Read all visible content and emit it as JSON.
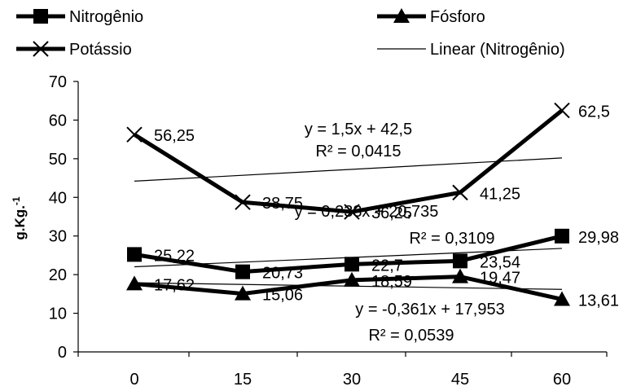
{
  "chart_data": {
    "type": "line",
    "title": "",
    "xlabel": "",
    "ylabel": "g.Kg.",
    "ylabel_sup": "-1",
    "x": [
      0,
      15,
      30,
      45,
      60
    ],
    "x_tick_labels": [
      "0",
      "15",
      "30",
      "45",
      "60"
    ],
    "ylim": [
      0,
      70
    ],
    "y_ticks": [
      0,
      10,
      20,
      30,
      40,
      50,
      60,
      70
    ],
    "grid": false,
    "legend_placement": "top",
    "series": [
      {
        "name": "Nitrogênio",
        "marker": "square",
        "color": "#000000",
        "values": [
          25.22,
          20.73,
          22.7,
          23.54,
          29.98
        ],
        "labels": [
          "25,22",
          "20,73",
          "22,7",
          "23,54",
          "29,98"
        ]
      },
      {
        "name": "Fósforo",
        "marker": "triangle",
        "color": "#000000",
        "values": [
          17.62,
          15.06,
          18.59,
          19.47,
          13.61
        ],
        "labels": [
          "17,62",
          "15,06",
          "18,59",
          "19,47",
          "13,61"
        ]
      },
      {
        "name": "Potássio",
        "marker": "x",
        "color": "#000000",
        "values": [
          56.25,
          38.75,
          36.25,
          41.25,
          62.5
        ],
        "labels": [
          "56,25",
          "38,75",
          "36,25",
          "41,25",
          "62,5"
        ]
      }
    ],
    "trendlines": [
      {
        "legend_name": "Linear (Nitrogênio)",
        "slope": 0.0793,
        "intercept": 22.03,
        "equation": "y = 0,233x + 20,735",
        "r2": "R² = 0,3109"
      },
      {
        "legend_name": "",
        "slope": -0.0287,
        "intercept": 17.9,
        "equation": "y = -0,361x + 17,953",
        "r2": "R² = 0,0539"
      },
      {
        "legend_name": "",
        "slope": 0.1,
        "intercept": 44.2,
        "equation": "y = 1,5x + 42,5",
        "r2": "R² = 0,0415"
      }
    ]
  }
}
